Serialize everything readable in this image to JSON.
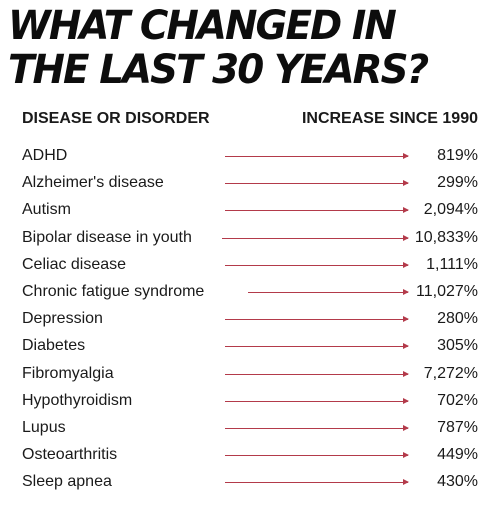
{
  "title": {
    "line1": "WHAT CHANGED IN",
    "line2": "THE LAST 30 YEARS?"
  },
  "header": {
    "left": "DISEASE OR DISORDER",
    "right": "INCREASE SINCE 1990"
  },
  "accent_color": "#b33a4a",
  "rows": [
    {
      "name": "ADHD",
      "value": "819%"
    },
    {
      "name": "Alzheimer's disease",
      "value": "299%"
    },
    {
      "name": "Autism",
      "value": "2,094%"
    },
    {
      "name": "Bipolar disease in youth",
      "value": "10,833%"
    },
    {
      "name": "Celiac disease",
      "value": "1,111%"
    },
    {
      "name": "Chronic fatigue syndrome",
      "value": "11,027%"
    },
    {
      "name": "Depression",
      "value": "280%"
    },
    {
      "name": "Diabetes",
      "value": "305%"
    },
    {
      "name": "Fibromyalgia",
      "value": "7,272%"
    },
    {
      "name": "Hypothyroidism",
      "value": "702%"
    },
    {
      "name": "Lupus",
      "value": "787%"
    },
    {
      "name": "Osteoarthritis",
      "value": "449%"
    },
    {
      "name": "Sleep apnea",
      "value": "430%"
    }
  ]
}
